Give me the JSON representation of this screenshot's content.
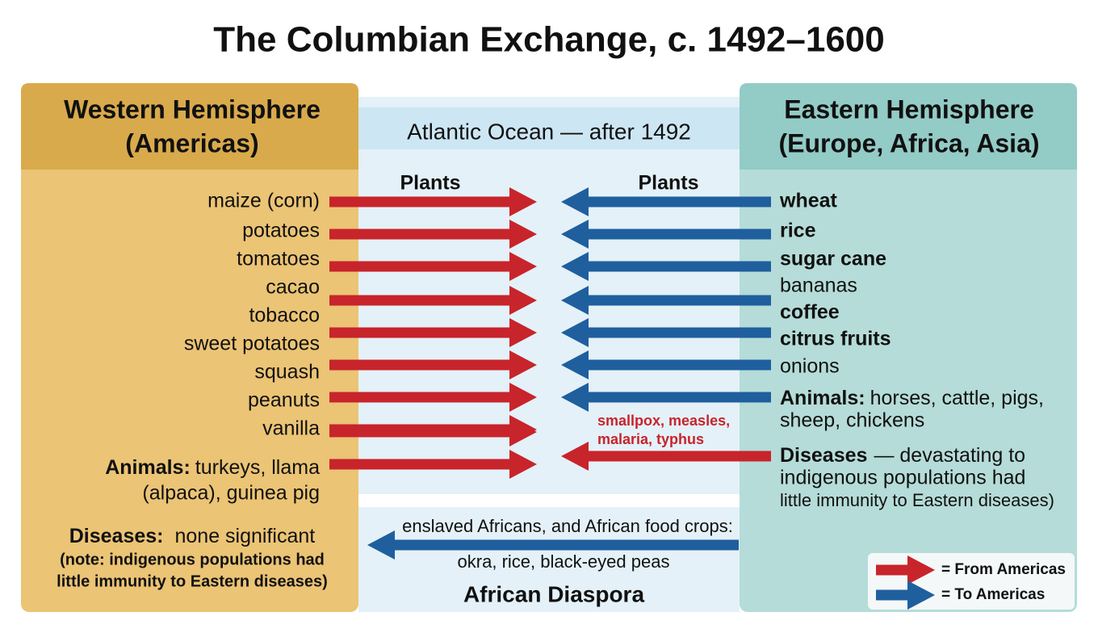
{
  "title": "The Columbian Exchange, c. 1492–1600",
  "western": {
    "heading": [
      "Western Hemisphere",
      "(Americas)"
    ],
    "plants_label": "Plants",
    "plants": [
      "maize (corn)",
      "potatoes",
      "tomatoes",
      "cacao",
      "tobacco",
      "sweet potatoes",
      "squash",
      "peanuts",
      "vanilla"
    ],
    "animals": {
      "label": "Animals:",
      "lines": [
        "turkeys, llama",
        "(alpaca), guinea pig"
      ]
    },
    "diseases": {
      "label": "Diseases:",
      "text": "none significant",
      "note": [
        "(note: indigenous populations had",
        "little immunity to Eastern diseases)"
      ]
    }
  },
  "ocean": {
    "label": "Atlantic Ocean — after 1492",
    "diseases_transferred": [
      "smallpox, measles,",
      "malaria, typhus"
    ]
  },
  "eastern": {
    "heading": [
      "Eastern Hemisphere",
      "(Europe, Africa, Asia)"
    ],
    "plants_label": "Plants",
    "plants": [
      {
        "text": "wheat",
        "bold": true
      },
      {
        "text": "rice",
        "bold": true
      },
      {
        "text": "sugar cane",
        "bold": true
      },
      {
        "text": "bananas",
        "bold": false
      },
      {
        "text": "coffee",
        "bold": true
      },
      {
        "text": "citrus fruits",
        "bold": true
      },
      {
        "text": "onions",
        "bold": false
      }
    ],
    "animals": {
      "label": "Animals:",
      "lines": [
        "horses, cattle, pigs,",
        "sheep, chickens"
      ]
    },
    "diseases": {
      "label": "Diseases",
      "lines": [
        "— devastating to",
        "indigenous populations had",
        "little immunity to Eastern diseases)"
      ]
    }
  },
  "diaspora": {
    "lines": [
      "enslaved Africans, and African food crops:",
      "okra, rice, black-eyed peas"
    ],
    "label": "African Diaspora"
  },
  "legend": [
    "= From Americas",
    "= To Americas"
  ]
}
